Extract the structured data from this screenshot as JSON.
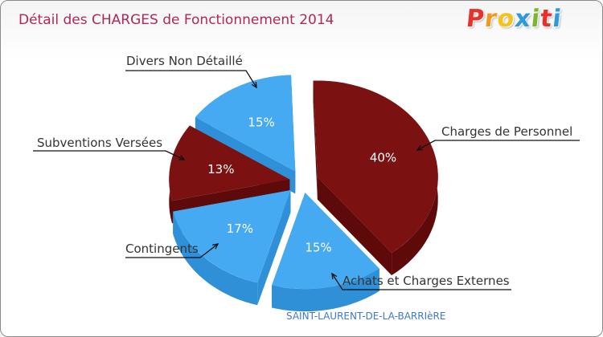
{
  "header": {
    "title": "Détail des CHARGES de Fonctionnement 2014",
    "brand": "Proxiti"
  },
  "footer": {
    "commune": "SAINT-LAURENT-DE-LA-BARRIèRE"
  },
  "colors": {
    "title": "#b0285a",
    "dark_red": "#7c1111",
    "dark_red_side": "#5e0a0a",
    "blue": "#45aaf2",
    "blue_side": "#2f90d8",
    "commune": "#3f78c8",
    "logo": [
      "#e8312a",
      "#f39a1e",
      "#f6c21c",
      "#2f9ad8",
      "#7ab829",
      "#e8312a",
      "#2f9ad8"
    ]
  },
  "chart_data": {
    "type": "pie",
    "title": "Détail des CHARGES de Fonctionnement 2014",
    "slices": [
      {
        "label": "Charges de Personnel",
        "value": 40,
        "pct_label": "40%",
        "color": "#7c1111"
      },
      {
        "label": "Achats et Charges Externes",
        "value": 15,
        "pct_label": "15%",
        "color": "#45aaf2"
      },
      {
        "label": "Contingents",
        "value": 17,
        "pct_label": "17%",
        "color": "#45aaf2"
      },
      {
        "label": "Subventions Versées",
        "value": 13,
        "pct_label": "13%",
        "color": "#7c1111"
      },
      {
        "label": "Divers Non Détaillé",
        "value": 15,
        "pct_label": "15%",
        "color": "#45aaf2"
      }
    ]
  }
}
